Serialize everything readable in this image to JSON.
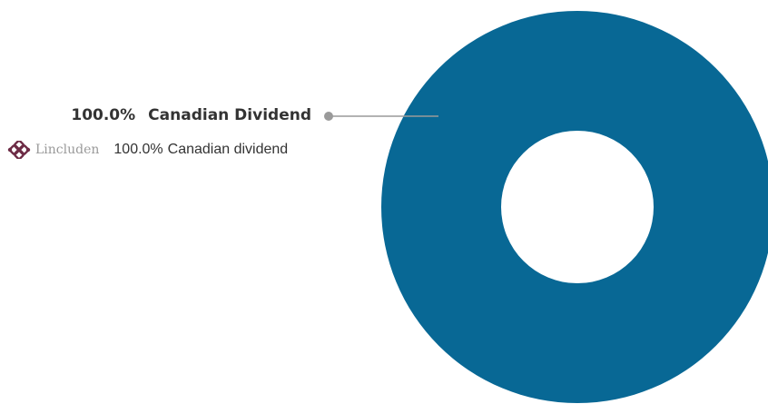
{
  "chart_data": {
    "type": "pie",
    "donut": true,
    "slices": [
      {
        "label": "Canadian Dividend",
        "value": 100.0,
        "value_label": "100.0%",
        "color": "#086895"
      }
    ]
  },
  "callout": {
    "percent": "100.0%",
    "label": "Canadian Dividend",
    "line_color": "#9a9a9a"
  },
  "legend": {
    "logo_text": "Lincluden",
    "logo_icon": "knot-icon",
    "logo_color": "#6d2b45",
    "percent": "100.0%",
    "label": "Canadian dividend"
  }
}
